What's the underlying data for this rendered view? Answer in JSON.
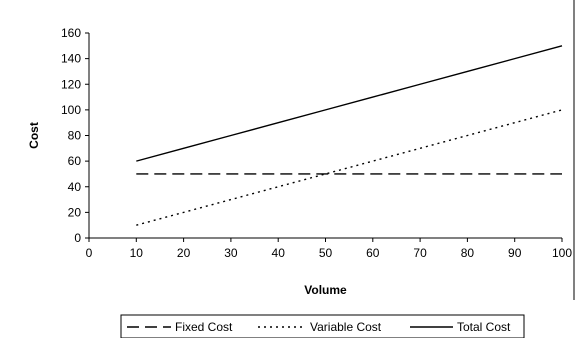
{
  "chart_data": {
    "type": "line",
    "title": "",
    "xlabel": "Volume",
    "ylabel": "Cost",
    "xlim": [
      0,
      100
    ],
    "ylim": [
      0,
      160
    ],
    "x_ticks": [
      0,
      10,
      20,
      30,
      40,
      50,
      60,
      70,
      80,
      90,
      100
    ],
    "y_ticks": [
      0,
      20,
      40,
      60,
      80,
      100,
      120,
      140,
      160
    ],
    "grid": false,
    "legend_position": "bottom",
    "x": [
      10,
      20,
      30,
      40,
      50,
      60,
      70,
      80,
      90,
      100
    ],
    "series": [
      {
        "name": "Fixed Cost",
        "style": "long-dash",
        "color": "#000000",
        "values": [
          50,
          50,
          50,
          50,
          50,
          50,
          50,
          50,
          50,
          50
        ]
      },
      {
        "name": "Variable Cost",
        "style": "dotted",
        "color": "#000000",
        "values": [
          10,
          20,
          30,
          40,
          50,
          60,
          70,
          80,
          90,
          100
        ]
      },
      {
        "name": "Total Cost",
        "style": "solid",
        "color": "#000000",
        "values": [
          60,
          70,
          80,
          90,
          100,
          110,
          120,
          130,
          140,
          150
        ]
      }
    ]
  }
}
